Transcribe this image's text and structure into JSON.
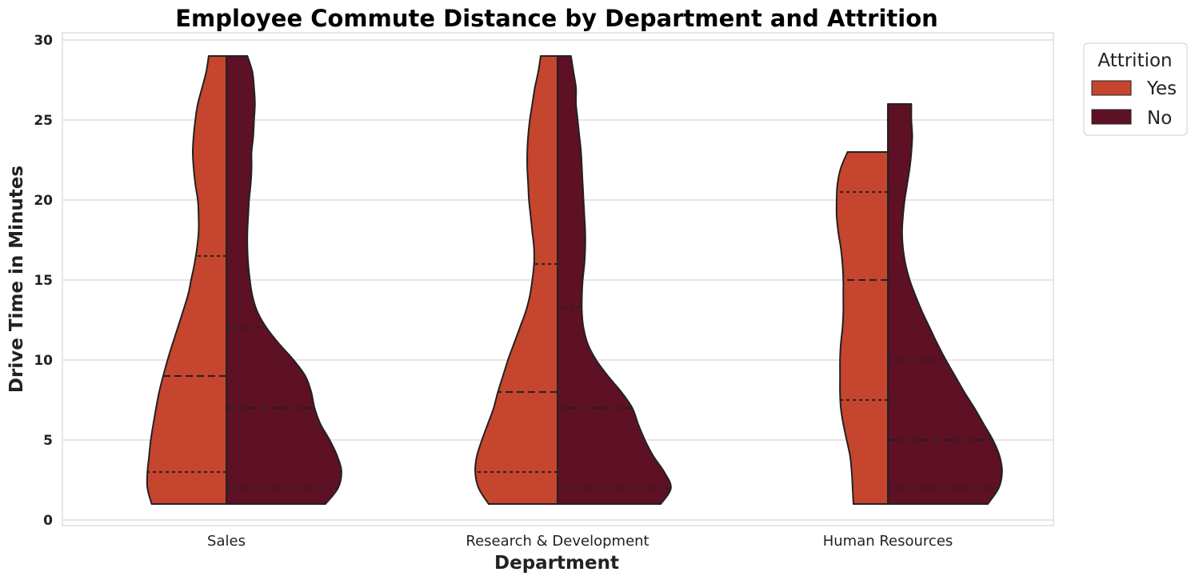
{
  "chart_data": {
    "type": "violin",
    "title": "Employee Commute Distance by Department and Attrition",
    "xlabel": "Department",
    "ylabel": "Drive Time in Minutes",
    "categories": [
      "Sales",
      "Research & Development",
      "Human Resources"
    ],
    "ylim": [
      0,
      30
    ],
    "yticks": [
      0,
      5,
      10,
      15,
      20,
      25,
      30
    ],
    "grid": true,
    "split": true,
    "inner": "quartile",
    "legend": {
      "title": "Attrition",
      "placement": "upper-right-outside"
    },
    "series": [
      {
        "name": "Yes",
        "color": "#c6452e",
        "side": "left",
        "groups": [
          {
            "category": "Sales",
            "min": 1,
            "max": 29,
            "quartiles": [
              3,
              9,
              16.5
            ],
            "density": [
              [
                1,
                0.89
              ],
              [
                2,
                0.94
              ],
              [
                3,
                0.94
              ],
              [
                4,
                0.92
              ],
              [
                5,
                0.9
              ],
              [
                6,
                0.87
              ],
              [
                8,
                0.8
              ],
              [
                10,
                0.7
              ],
              [
                12,
                0.58
              ],
              [
                14,
                0.46
              ],
              [
                15,
                0.42
              ],
              [
                16,
                0.38
              ],
              [
                17,
                0.35
              ],
              [
                18,
                0.33
              ],
              [
                19,
                0.33
              ],
              [
                20,
                0.34
              ],
              [
                21,
                0.37
              ],
              [
                22,
                0.39
              ],
              [
                23,
                0.4
              ],
              [
                24,
                0.39
              ],
              [
                25,
                0.37
              ],
              [
                26,
                0.34
              ],
              [
                27,
                0.29
              ],
              [
                28,
                0.24
              ],
              [
                29,
                0.21
              ]
            ]
          },
          {
            "category": "Research & Development",
            "min": 1,
            "max": 29,
            "quartiles": [
              3,
              8,
              16
            ],
            "density": [
              [
                1,
                0.82
              ],
              [
                2,
                0.94
              ],
              [
                3,
                0.98
              ],
              [
                4,
                0.96
              ],
              [
                5,
                0.9
              ],
              [
                6,
                0.83
              ],
              [
                7,
                0.76
              ],
              [
                8,
                0.71
              ],
              [
                9,
                0.65
              ],
              [
                10,
                0.59
              ],
              [
                11,
                0.52
              ],
              [
                12,
                0.45
              ],
              [
                13,
                0.38
              ],
              [
                14,
                0.33
              ],
              [
                15,
                0.3
              ],
              [
                16,
                0.28
              ],
              [
                17,
                0.28
              ],
              [
                18,
                0.3
              ],
              [
                19,
                0.32
              ],
              [
                20,
                0.34
              ],
              [
                21,
                0.35
              ],
              [
                22,
                0.36
              ],
              [
                23,
                0.36
              ],
              [
                24,
                0.35
              ],
              [
                25,
                0.33
              ],
              [
                26,
                0.3
              ],
              [
                27,
                0.27
              ],
              [
                28,
                0.23
              ],
              [
                29,
                0.2
              ]
            ]
          },
          {
            "category": "Human Resources",
            "min": 1,
            "max": 23,
            "quartiles": [
              7.5,
              15,
              20.5
            ],
            "density": [
              [
                1,
                0.41
              ],
              [
                2,
                0.42
              ],
              [
                3,
                0.43
              ],
              [
                4,
                0.45
              ],
              [
                5,
                0.49
              ],
              [
                6,
                0.53
              ],
              [
                7,
                0.56
              ],
              [
                8,
                0.57
              ],
              [
                9,
                0.57
              ],
              [
                10,
                0.57
              ],
              [
                11,
                0.56
              ],
              [
                12,
                0.54
              ],
              [
                13,
                0.53
              ],
              [
                14,
                0.53
              ],
              [
                15,
                0.53
              ],
              [
                16,
                0.54
              ],
              [
                17,
                0.56
              ],
              [
                18,
                0.59
              ],
              [
                19,
                0.61
              ],
              [
                20,
                0.61
              ],
              [
                21,
                0.6
              ],
              [
                22,
                0.56
              ],
              [
                23,
                0.48
              ]
            ]
          }
        ]
      },
      {
        "name": "No",
        "color": "#5e1124",
        "side": "right",
        "groups": [
          {
            "category": "Sales",
            "min": 1,
            "max": 29,
            "quartiles": [
              2,
              7,
              12
            ],
            "density": [
              [
                1,
                1.18
              ],
              [
                2,
                1.33
              ],
              [
                3,
                1.37
              ],
              [
                4,
                1.32
              ],
              [
                5,
                1.23
              ],
              [
                6,
                1.12
              ],
              [
                7,
                1.05
              ],
              [
                8,
                1.01
              ],
              [
                9,
                0.94
              ],
              [
                10,
                0.8
              ],
              [
                11,
                0.63
              ],
              [
                12,
                0.48
              ],
              [
                13,
                0.37
              ],
              [
                14,
                0.31
              ],
              [
                15,
                0.28
              ],
              [
                16,
                0.26
              ],
              [
                17,
                0.25
              ],
              [
                18,
                0.25
              ],
              [
                19,
                0.26
              ],
              [
                20,
                0.27
              ],
              [
                21,
                0.29
              ],
              [
                22,
                0.3
              ],
              [
                23,
                0.3
              ],
              [
                24,
                0.32
              ],
              [
                25,
                0.33
              ],
              [
                26,
                0.34
              ],
              [
                27,
                0.33
              ],
              [
                28,
                0.31
              ],
              [
                29,
                0.25
              ]
            ]
          },
          {
            "category": "Research & Development",
            "min": 1,
            "max": 29,
            "quartiles": [
              2,
              7,
              13.3
            ],
            "density": [
              [
                1,
                1.23
              ],
              [
                2,
                1.35
              ],
              [
                3,
                1.27
              ],
              [
                4,
                1.14
              ],
              [
                5,
                1.04
              ],
              [
                6,
                0.96
              ],
              [
                7,
                0.89
              ],
              [
                8,
                0.76
              ],
              [
                9,
                0.6
              ],
              [
                10,
                0.46
              ],
              [
                11,
                0.36
              ],
              [
                12,
                0.31
              ],
              [
                13,
                0.29
              ],
              [
                14,
                0.29
              ],
              [
                15,
                0.3
              ],
              [
                16,
                0.32
              ],
              [
                17,
                0.33
              ],
              [
                18,
                0.33
              ],
              [
                19,
                0.32
              ],
              [
                20,
                0.31
              ],
              [
                21,
                0.3
              ],
              [
                22,
                0.29
              ],
              [
                23,
                0.28
              ],
              [
                24,
                0.26
              ],
              [
                25,
                0.24
              ],
              [
                26,
                0.22
              ],
              [
                27,
                0.22
              ],
              [
                28,
                0.19
              ],
              [
                29,
                0.16
              ]
            ]
          },
          {
            "category": "Human Resources",
            "min": 1,
            "max": 26,
            "quartiles": [
              2,
              5,
              10
            ],
            "density": [
              [
                1,
                1.19
              ],
              [
                2,
                1.32
              ],
              [
                3,
                1.36
              ],
              [
                4,
                1.33
              ],
              [
                5,
                1.25
              ],
              [
                6,
                1.14
              ],
              [
                7,
                1.03
              ],
              [
                8,
                0.91
              ],
              [
                9,
                0.8
              ],
              [
                10,
                0.69
              ],
              [
                11,
                0.59
              ],
              [
                12,
                0.5
              ],
              [
                13,
                0.41
              ],
              [
                14,
                0.33
              ],
              [
                15,
                0.26
              ],
              [
                16,
                0.21
              ],
              [
                17,
                0.18
              ],
              [
                18,
                0.17
              ],
              [
                19,
                0.18
              ],
              [
                20,
                0.2
              ],
              [
                21,
                0.23
              ],
              [
                22,
                0.26
              ],
              [
                23,
                0.28
              ],
              [
                24,
                0.29
              ],
              [
                25,
                0.28
              ],
              [
                26,
                0.28
              ]
            ]
          }
        ]
      }
    ]
  }
}
